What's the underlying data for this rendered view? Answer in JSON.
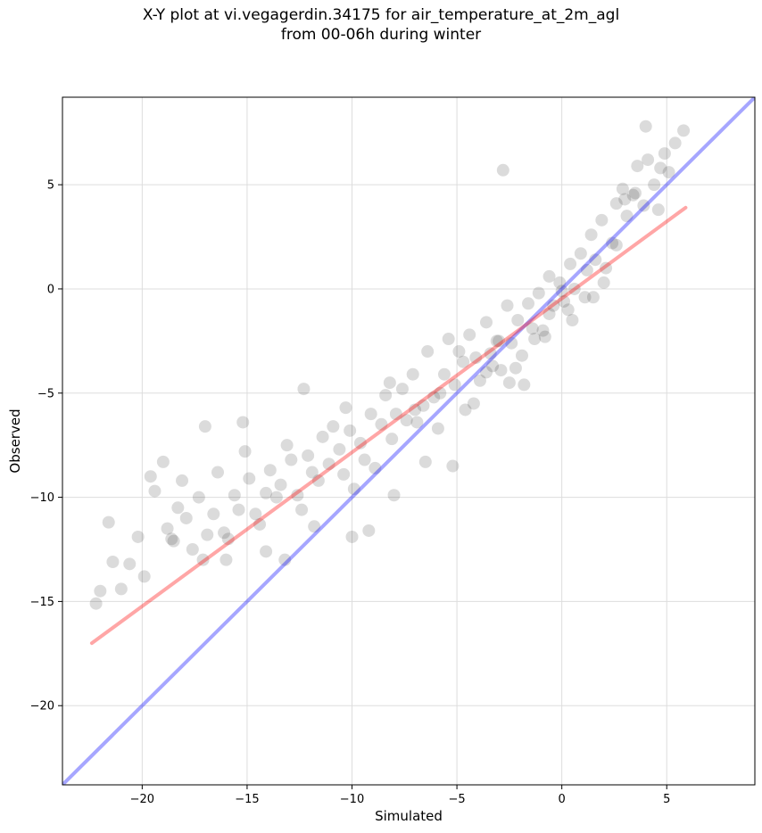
{
  "title": {
    "line1": "X-Y plot at vi.vegagerdin.34175 for air_temperature_at_2m_agl",
    "line2": "from 00-06h during winter"
  },
  "colors": {
    "points": "#000000",
    "identity_line": "#0000ff",
    "fit_line": "#ff0000",
    "grid": "#dddddd"
  },
  "chart_data": {
    "type": "scatter",
    "xlabel": "Simulated",
    "ylabel": "Observed",
    "xlim": [
      -23.8,
      9.2
    ],
    "ylim": [
      -23.8,
      9.2
    ],
    "grid": true,
    "xticks": [
      -20,
      -15,
      -10,
      -5,
      0,
      5
    ],
    "yticks": [
      -20,
      -15,
      -10,
      -5,
      0,
      5
    ],
    "xtick_labels": [
      "−20",
      "−15",
      "−10",
      "−5",
      "0",
      "5"
    ],
    "ytick_labels": [
      "−20",
      "−15",
      "−10",
      "−5",
      "0",
      "5"
    ],
    "reference_lines": [
      {
        "kind": "identity",
        "x": [
          -23.8,
          9.2
        ],
        "y": [
          -23.8,
          9.2
        ]
      },
      {
        "kind": "regression",
        "x": [
          -22.4,
          5.9
        ],
        "y": [
          -17.0,
          3.9
        ]
      }
    ],
    "scatter_note": "approx. 1500 semi-transparent points clustered along the fit line",
    "points_x": [
      -22.2,
      -22.0,
      -21.6,
      -21.4,
      -21.0,
      -20.6,
      -20.2,
      -19.9,
      -19.6,
      -19.4,
      -19.0,
      -18.8,
      -18.6,
      -18.3,
      -18.1,
      -17.9,
      -17.6,
      -17.3,
      -17.1,
      -16.9,
      -16.6,
      -16.4,
      -16.1,
      -15.9,
      -15.6,
      -15.4,
      -15.1,
      -14.9,
      -14.6,
      -14.4,
      -14.1,
      -13.9,
      -13.6,
      -13.4,
      -13.1,
      -12.9,
      -12.6,
      -12.4,
      -12.1,
      -11.9,
      -11.6,
      -11.4,
      -11.1,
      -10.9,
      -10.6,
      -10.4,
      -10.1,
      -9.9,
      -9.6,
      -9.4,
      -9.1,
      -8.9,
      -8.6,
      -8.4,
      -8.1,
      -7.9,
      -7.6,
      -7.4,
      -7.1,
      -6.9,
      -6.6,
      -6.4,
      -6.1,
      -5.9,
      -5.6,
      -5.4,
      -5.1,
      -4.9,
      -4.6,
      -4.4,
      -4.1,
      -3.9,
      -3.6,
      -3.4,
      -3.1,
      -2.9,
      -2.6,
      -2.4,
      -2.1,
      -1.9,
      -1.6,
      -1.4,
      -1.1,
      -0.9,
      -0.6,
      -0.4,
      -0.1,
      0.1,
      0.4,
      0.6,
      0.9,
      1.1,
      1.4,
      1.6,
      1.9,
      2.1,
      2.4,
      2.6,
      2.9,
      3.1,
      3.4,
      3.6,
      3.9,
      4.1,
      4.4,
      4.6,
      4.9,
      5.1,
      5.4,
      5.8,
      -17.0,
      -15.2,
      -12.3,
      -10.3,
      -8.2,
      -7.0,
      -5.8,
      -4.7,
      -3.6,
      -3.0,
      -2.8,
      -2.2,
      -1.3,
      -0.6,
      0.0,
      0.3,
      1.2,
      2.0,
      3.0,
      4.0,
      -18.5,
      -16.0,
      -14.1,
      -13.2,
      -11.8,
      -10.0,
      -9.2,
      -8.0,
      -6.5,
      -5.2,
      -4.2,
      -3.3,
      -2.5,
      -1.8,
      -0.8,
      0.5,
      1.5,
      2.6,
      3.5,
      4.7
    ],
    "points_y": [
      -15.1,
      -14.5,
      -11.2,
      -13.1,
      -14.4,
      -13.2,
      -11.9,
      -13.8,
      -9.0,
      -9.7,
      -8.3,
      -11.5,
      -12.0,
      -10.5,
      -9.2,
      -11.0,
      -12.5,
      -10.0,
      -13.0,
      -11.8,
      -10.8,
      -8.8,
      -11.7,
      -12.0,
      -9.9,
      -10.6,
      -7.8,
      -9.1,
      -10.8,
      -11.3,
      -9.8,
      -8.7,
      -10.0,
      -9.4,
      -7.5,
      -8.2,
      -9.9,
      -10.6,
      -8.0,
      -8.8,
      -9.2,
      -7.1,
      -8.4,
      -6.6,
      -7.7,
      -8.9,
      -6.8,
      -9.6,
      -7.4,
      -8.2,
      -6.0,
      -8.6,
      -6.5,
      -5.1,
      -7.2,
      -6.0,
      -4.8,
      -6.3,
      -4.1,
      -6.4,
      -5.6,
      -3.0,
      -5.2,
      -6.7,
      -4.1,
      -2.4,
      -4.6,
      -3.0,
      -5.8,
      -2.2,
      -3.3,
      -4.4,
      -1.6,
      -3.1,
      -2.5,
      -3.9,
      -0.8,
      -2.6,
      -1.5,
      -3.2,
      -0.7,
      -1.9,
      -0.2,
      -2.0,
      0.6,
      -0.8,
      0.3,
      -0.6,
      1.2,
      0.0,
      1.7,
      -0.4,
      2.6,
      1.4,
      3.3,
      1.0,
      2.2,
      4.1,
      4.8,
      3.5,
      4.5,
      5.9,
      4.0,
      6.2,
      5.0,
      3.8,
      6.5,
      5.6,
      7.0,
      7.6,
      -6.6,
      -6.4,
      -4.8,
      -5.7,
      -4.5,
      -5.8,
      -5.0,
      -3.5,
      -4.0,
      -2.5,
      5.7,
      -3.8,
      -2.4,
      -1.2,
      -0.1,
      -1.0,
      0.9,
      0.3,
      4.3,
      7.8,
      -12.1,
      -13.0,
      -12.6,
      -13.0,
      -11.4,
      -11.9,
      -11.6,
      -9.9,
      -8.3,
      -8.5,
      -5.5,
      -3.7,
      -4.5,
      -4.6,
      -2.3,
      -1.5,
      -0.4,
      2.1,
      4.6,
      5.8
    ]
  }
}
